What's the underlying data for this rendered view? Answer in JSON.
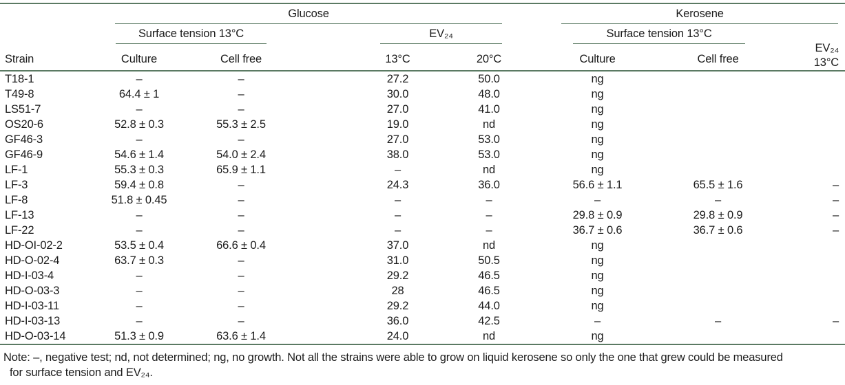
{
  "colors": {
    "rule_green": "#5b7a63",
    "text": "#1b1b1b",
    "background": "#ffffff"
  },
  "table": {
    "header": {
      "strain": "Strain",
      "glucose": {
        "label": "Glucose",
        "surface_tension": {
          "label": "Surface tension 13°C",
          "culture": "Culture",
          "cell_free": "Cell free"
        },
        "ev24": {
          "label": "EV₂₄",
          "t13": "13°C",
          "t20": "20°C"
        }
      },
      "kerosene": {
        "label": "Kerosene",
        "surface_tension": {
          "label": "Surface tension 13°C",
          "culture": "Culture",
          "cell_free": "Cell free"
        },
        "ev24": {
          "label": "EV₂₄",
          "t13": "13°C"
        }
      }
    },
    "columns": [
      "strain",
      "glucose_culture",
      "glucose_cell_free",
      "glucose_ev24_13c",
      "glucose_ev24_20c",
      "kerosene_culture",
      "kerosene_cell_free",
      "kerosene_ev24_13c"
    ],
    "rows": [
      {
        "strain": "T18-1",
        "glucose_culture": "–",
        "glucose_cell_free": "–",
        "glucose_ev24_13c": "27.2",
        "glucose_ev24_20c": "50.0",
        "kerosene_culture": "ng",
        "kerosene_cell_free": "",
        "kerosene_ev24_13c": ""
      },
      {
        "strain": "T49-8",
        "glucose_culture": "64.4 ± 1",
        "glucose_cell_free": "–",
        "glucose_ev24_13c": "30.0",
        "glucose_ev24_20c": "48.0",
        "kerosene_culture": "ng",
        "kerosene_cell_free": "",
        "kerosene_ev24_13c": ""
      },
      {
        "strain": "LS51-7",
        "glucose_culture": "–",
        "glucose_cell_free": "–",
        "glucose_ev24_13c": "27.0",
        "glucose_ev24_20c": "41.0",
        "kerosene_culture": "ng",
        "kerosene_cell_free": "",
        "kerosene_ev24_13c": ""
      },
      {
        "strain": "OS20-6",
        "glucose_culture": "52.8 ± 0.3",
        "glucose_cell_free": "55.3 ± 2.5",
        "glucose_ev24_13c": "19.0",
        "glucose_ev24_20c": "nd",
        "kerosene_culture": "ng",
        "kerosene_cell_free": "",
        "kerosene_ev24_13c": ""
      },
      {
        "strain": "GF46-3",
        "glucose_culture": "–",
        "glucose_cell_free": "–",
        "glucose_ev24_13c": "27.0",
        "glucose_ev24_20c": "53.0",
        "kerosene_culture": "ng",
        "kerosene_cell_free": "",
        "kerosene_ev24_13c": ""
      },
      {
        "strain": "GF46-9",
        "glucose_culture": "54.6 ± 1.4",
        "glucose_cell_free": "54.0 ± 2.4",
        "glucose_ev24_13c": "38.0",
        "glucose_ev24_20c": "53.0",
        "kerosene_culture": "ng",
        "kerosene_cell_free": "",
        "kerosene_ev24_13c": ""
      },
      {
        "strain": "LF-1",
        "glucose_culture": "55.3 ± 0.3",
        "glucose_cell_free": "65.9 ± 1.1",
        "glucose_ev24_13c": "–",
        "glucose_ev24_20c": "nd",
        "kerosene_culture": "ng",
        "kerosene_cell_free": "",
        "kerosene_ev24_13c": ""
      },
      {
        "strain": "LF-3",
        "glucose_culture": "59.4 ± 0.8",
        "glucose_cell_free": "–",
        "glucose_ev24_13c": "24.3",
        "glucose_ev24_20c": "36.0",
        "kerosene_culture": "56.6 ± 1.1",
        "kerosene_cell_free": "65.5 ± 1.6",
        "kerosene_ev24_13c": "–"
      },
      {
        "strain": "LF-8",
        "glucose_culture": "51.8 ± 0.45",
        "glucose_cell_free": "–",
        "glucose_ev24_13c": "–",
        "glucose_ev24_20c": "–",
        "kerosene_culture": "–",
        "kerosene_cell_free": "–",
        "kerosene_ev24_13c": "–"
      },
      {
        "strain": "LF-13",
        "glucose_culture": "–",
        "glucose_cell_free": "–",
        "glucose_ev24_13c": "–",
        "glucose_ev24_20c": "–",
        "kerosene_culture": "29.8 ± 0.9",
        "kerosene_cell_free": "29.8 ± 0.9",
        "kerosene_ev24_13c": "–"
      },
      {
        "strain": "LF-22",
        "glucose_culture": "–",
        "glucose_cell_free": "–",
        "glucose_ev24_13c": "–",
        "glucose_ev24_20c": "–",
        "kerosene_culture": "36.7 ± 0.6",
        "kerosene_cell_free": "36.7 ± 0.6",
        "kerosene_ev24_13c": "–"
      },
      {
        "strain": "HD-OI-02-2",
        "glucose_culture": "53.5 ± 0.4",
        "glucose_cell_free": "66.6 ± 0.4",
        "glucose_ev24_13c": "37.0",
        "glucose_ev24_20c": "nd",
        "kerosene_culture": "ng",
        "kerosene_cell_free": "",
        "kerosene_ev24_13c": ""
      },
      {
        "strain": "HD-O-02-4",
        "glucose_culture": "63.7 ± 0.3",
        "glucose_cell_free": "–",
        "glucose_ev24_13c": "31.0",
        "glucose_ev24_20c": "50.5",
        "kerosene_culture": "ng",
        "kerosene_cell_free": "",
        "kerosene_ev24_13c": ""
      },
      {
        "strain": "HD-I-03-4",
        "glucose_culture": "–",
        "glucose_cell_free": "–",
        "glucose_ev24_13c": "29.2",
        "glucose_ev24_20c": "46.5",
        "kerosene_culture": "ng",
        "kerosene_cell_free": "",
        "kerosene_ev24_13c": ""
      },
      {
        "strain": "HD-O-03-3",
        "glucose_culture": "–",
        "glucose_cell_free": "–",
        "glucose_ev24_13c": "28",
        "glucose_ev24_20c": "46.5",
        "kerosene_culture": "ng",
        "kerosene_cell_free": "",
        "kerosene_ev24_13c": ""
      },
      {
        "strain": "HD-I-03-11",
        "glucose_culture": "–",
        "glucose_cell_free": "–",
        "glucose_ev24_13c": "29.2",
        "glucose_ev24_20c": "44.0",
        "kerosene_culture": "ng",
        "kerosene_cell_free": "",
        "kerosene_ev24_13c": ""
      },
      {
        "strain": "HD-I-03-13",
        "glucose_culture": "–",
        "glucose_cell_free": "–",
        "glucose_ev24_13c": "36.0",
        "glucose_ev24_20c": "42.5",
        "kerosene_culture": "–",
        "kerosene_cell_free": "–",
        "kerosene_ev24_13c": "–"
      },
      {
        "strain": "HD-O-03-14",
        "glucose_culture": "51.3 ± 0.9",
        "glucose_cell_free": "63.6 ± 1.4",
        "glucose_ev24_13c": "24.0",
        "glucose_ev24_20c": "nd",
        "kerosene_culture": "ng",
        "kerosene_cell_free": "",
        "kerosene_ev24_13c": ""
      }
    ]
  },
  "note": {
    "line1": "Note: –, negative test; nd, not determined; ng, no growth. Not all the strains were able to grow on liquid kerosene so only the one that grew could be measured",
    "line2": "for surface tension and EV₂₄."
  }
}
